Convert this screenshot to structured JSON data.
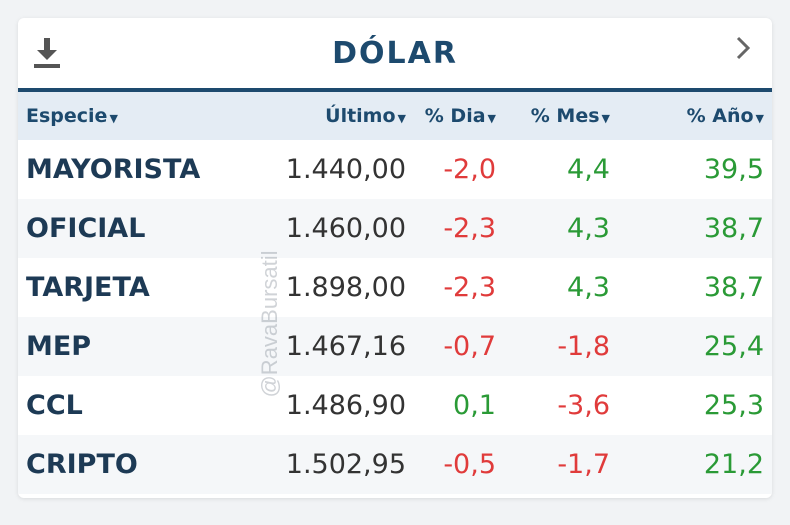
{
  "widget": {
    "title": "DÓLAR",
    "download_icon": "download-icon",
    "next_icon": "chevron-right-icon"
  },
  "table": {
    "columns": [
      "Especie",
      "Último",
      "% Dia",
      "% Mes",
      "% Año"
    ],
    "rows": [
      {
        "name": "MAYORISTA",
        "last": "1.440,00",
        "day": "-2,0",
        "month": "4,4",
        "year": "39,5"
      },
      {
        "name": "OFICIAL",
        "last": "1.460,00",
        "day": "-2,3",
        "month": "4,3",
        "year": "38,7"
      },
      {
        "name": "TARJETA",
        "last": "1.898,00",
        "day": "-2,3",
        "month": "4,3",
        "year": "38,7"
      },
      {
        "name": "MEP",
        "last": "1.467,16",
        "day": "-0,7",
        "month": "-1,8",
        "year": "25,4"
      },
      {
        "name": "CCL",
        "last": "1.486,90",
        "day": "0,1",
        "month": "-3,6",
        "year": "25,3"
      },
      {
        "name": "CRIPTO",
        "last": "1.502,95",
        "day": "-0,5",
        "month": "-1,7",
        "year": "21,2"
      }
    ]
  },
  "watermark": "@RavaBursatil",
  "colors": {
    "primary": "#1d4a6e",
    "negative": "#e03b3b",
    "positive": "#2a9a36",
    "header_bg": "#e4ecf4"
  }
}
